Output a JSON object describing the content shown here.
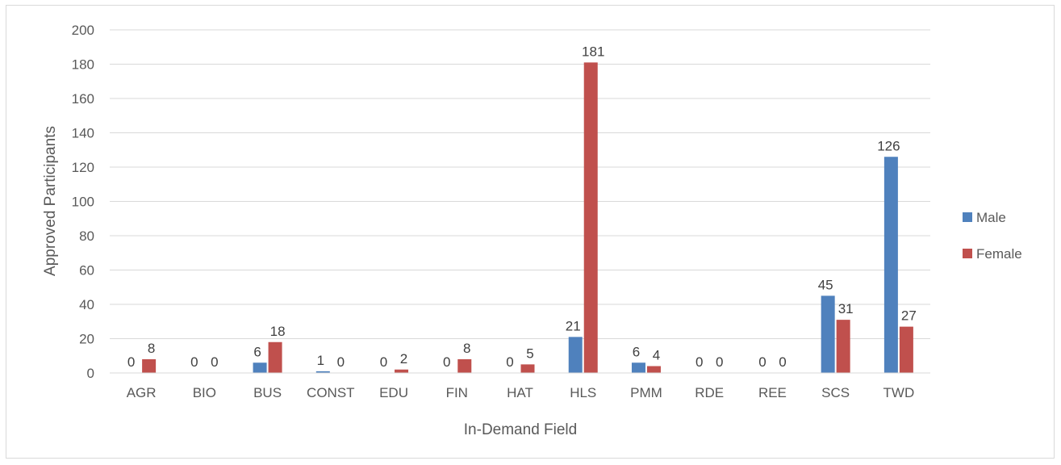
{
  "chart_data": {
    "type": "bar",
    "categories": [
      "AGR",
      "BIO",
      "BUS",
      "CONST",
      "EDU",
      "FIN",
      "HAT",
      "HLS",
      "PMM",
      "RDE",
      "REE",
      "SCS",
      "TWD"
    ],
    "series": [
      {
        "name": "Male",
        "color": "#4f81bd",
        "values": [
          0,
          0,
          6,
          1,
          0,
          0,
          0,
          21,
          6,
          0,
          0,
          45,
          126
        ]
      },
      {
        "name": "Female",
        "color": "#c0504d",
        "values": [
          8,
          0,
          18,
          0,
          2,
          8,
          5,
          181,
          4,
          0,
          0,
          31,
          27
        ]
      }
    ],
    "xlabel": "In-Demand Field",
    "ylabel": "Approved Participants",
    "ylim": [
      0,
      200
    ],
    "yticks": [
      0,
      20,
      40,
      60,
      80,
      100,
      120,
      140,
      160,
      180,
      200
    ],
    "grid": true,
    "legend": "right"
  }
}
